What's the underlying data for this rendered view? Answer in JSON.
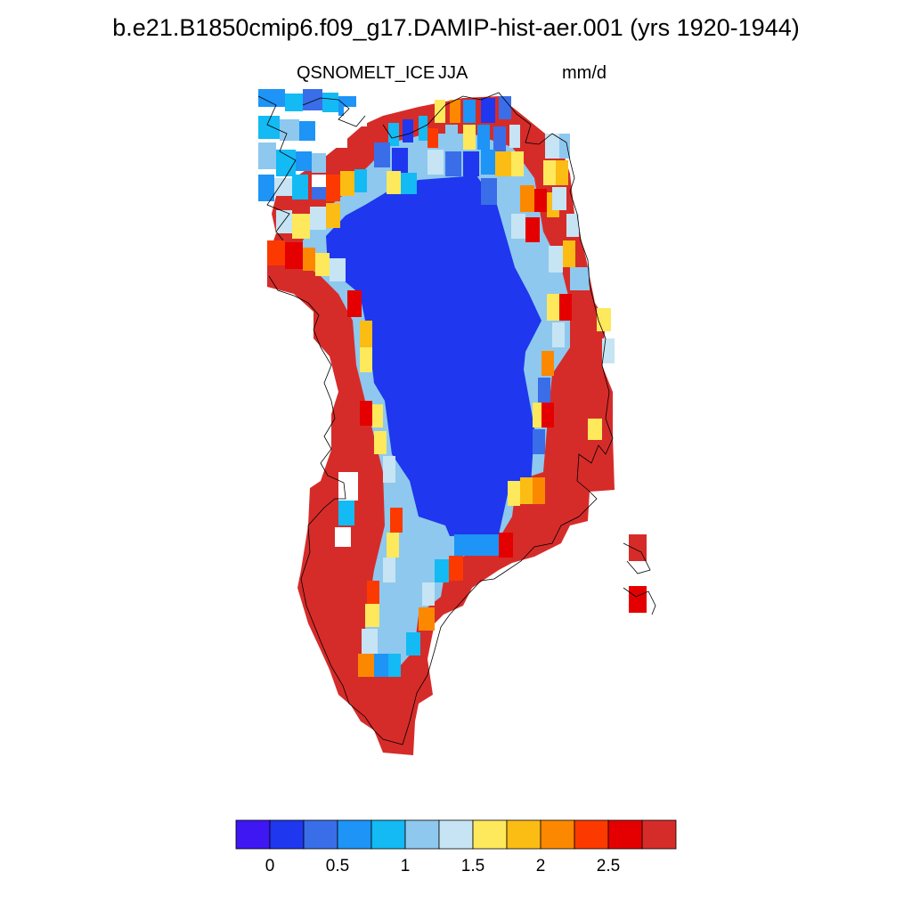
{
  "title": "b.e21.B1850cmip6.f09_g17.DAMIP-hist-aer.001 (yrs 1920-1944)",
  "variable": "QSNOMELT_ICE",
  "season": "JJA",
  "units": "mm/d",
  "colorbar": {
    "colors": [
      "#3f17f2",
      "#1f37ee",
      "#3a6ee8",
      "#1d94f6",
      "#13baf4",
      "#8ec8ee",
      "#c6e4f3",
      "#fde95b",
      "#fbbc14",
      "#fc8800",
      "#fc3a00",
      "#e40000",
      "#d52c2a"
    ],
    "tick_labels": [
      "0",
      "0.5",
      "1",
      "1.5",
      "2",
      "2.5"
    ]
  }
}
